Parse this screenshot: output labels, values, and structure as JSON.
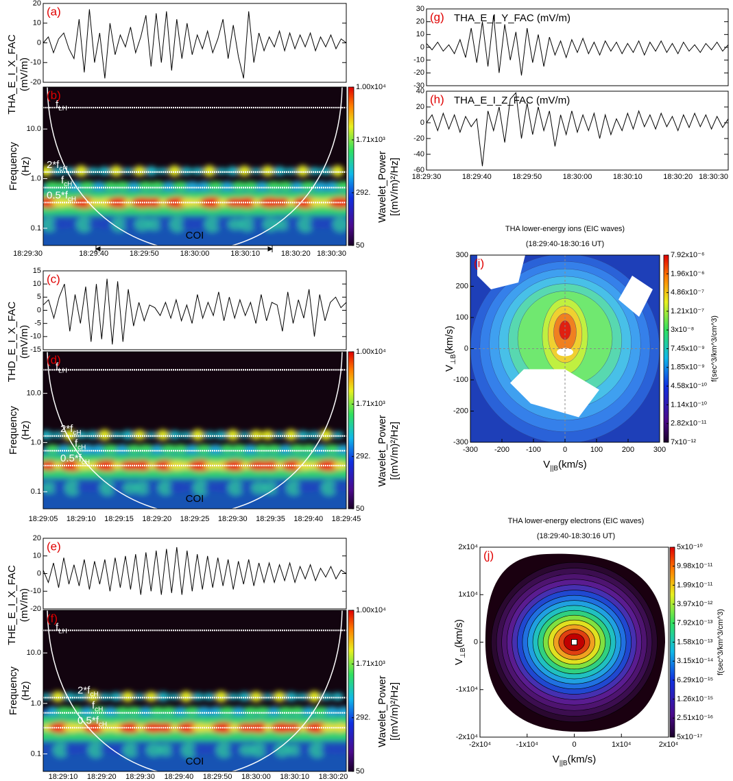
{
  "chart_data": [
    {
      "type": "line",
      "label": "(a)",
      "ylabel": [
        "THA_E_I_X_FAC",
        "(mV/m)"
      ],
      "ylim": [
        -20,
        20
      ],
      "yticks": [
        -20,
        -10,
        0,
        10,
        20
      ],
      "color": "#000000",
      "values": [
        0,
        3,
        -5,
        2,
        5,
        -3,
        -8,
        12,
        -15,
        17,
        -10,
        5,
        -18,
        10,
        -6,
        4,
        -2,
        8,
        -5,
        3,
        14,
        -12,
        15,
        -10,
        16,
        -14,
        12,
        -8,
        10,
        -6,
        4,
        -3,
        6,
        -5,
        2,
        12,
        -8,
        9,
        -7,
        -18,
        16,
        -10,
        5,
        -4,
        3,
        -2,
        6,
        -4,
        5,
        -3,
        4,
        -2,
        5,
        -4,
        3,
        -2,
        4,
        -3,
        2,
        0
      ]
    },
    {
      "type": "spectrogram",
      "label": "(b)",
      "ylabel": [
        "Frequency",
        "(Hz)"
      ],
      "log_y": true,
      "ylim": [
        0.045,
        70
      ],
      "yticks": [
        0.1,
        {
          "value": 1,
          "label": "1.0"
        },
        {
          "value": 10,
          "label": "10.0"
        }
      ],
      "xticks": [
        "18:29:30",
        "18:29:40",
        "18:29:50",
        "18:30:00",
        "18:30:10",
        "18:30:20",
        "18:30:30"
      ],
      "lines": [
        {
          "name": "f",
          "sub": "LH",
          "value": 27
        },
        {
          "name": "2*f",
          "sub": "cH",
          "value": 1.36
        },
        {
          "name": "f",
          "sub": "cH",
          "value": 0.66
        },
        {
          "name": "0.5*f",
          "sub": "cH",
          "value": 0.33
        }
      ],
      "coi_label": "COI",
      "colorbar": {
        "label": [
          "Wavelet_Power",
          "[(mV/m)²/Hz]"
        ],
        "log": true,
        "lim": [
          50,
          10000
        ],
        "ticks": [
          {
            "value": 10000,
            "label": "1.00x10⁴"
          },
          {
            "value": 1710,
            "label": "1.71x10³"
          },
          {
            "value": 292,
            "label": "292."
          },
          50.0
        ]
      }
    },
    {
      "type": "line",
      "label": "(c)",
      "ylabel": [
        "THD_E_I_X_FAC",
        "(mV/m)"
      ],
      "ylim": [
        -15,
        15
      ],
      "yticks": [
        -15,
        -10,
        -5,
        0,
        5,
        10,
        15
      ],
      "color": "#000000",
      "values": [
        2,
        4,
        -3,
        5,
        10,
        -8,
        6,
        -5,
        9,
        -12,
        10,
        -11,
        12,
        -13,
        11,
        -12,
        8,
        -6,
        3,
        -4,
        2,
        1,
        -2,
        3,
        -3,
        4,
        -4,
        2,
        -5,
        6,
        -3,
        3,
        -2,
        7,
        -4,
        5,
        -3,
        4,
        -2,
        3,
        -5,
        6,
        -4,
        3,
        2,
        -8,
        7,
        -5,
        4,
        -3,
        8,
        -10,
        6,
        -4,
        3,
        5,
        1,
        3
      ]
    },
    {
      "type": "spectrogram",
      "label": "(d)",
      "ylabel": [
        "Frequency",
        "(Hz)"
      ],
      "log_y": true,
      "ylim": [
        0.045,
        70
      ],
      "yticks": [
        0.1,
        {
          "value": 1,
          "label": "1.0"
        },
        {
          "value": 10,
          "label": "10.0"
        }
      ],
      "xticks": [
        "18:29:05",
        "18:29:10",
        "18:29:15",
        "18:29:20",
        "18:29:25",
        "18:29:30",
        "18:29:35",
        "18:29:40",
        "18:29:45"
      ],
      "lines": [
        {
          "name": "f",
          "sub": "LH",
          "value": 30
        },
        {
          "name": "2*f",
          "sub": "cH",
          "value": 1.36
        },
        {
          "name": "f",
          "sub": "cH",
          "value": 0.68
        },
        {
          "name": "0.5*f",
          "sub": "cH",
          "value": 0.34
        }
      ],
      "coi_label": "COI",
      "colorbar": {
        "label": [
          "Wavelet_Power",
          "[(mV/m)²/Hz]"
        ],
        "log": true,
        "lim": [
          50,
          10000
        ],
        "ticks": [
          {
            "value": 10000,
            "label": "1.00x10⁴"
          },
          {
            "value": 1710,
            "label": "1.71x10³"
          },
          {
            "value": 292,
            "label": "292."
          },
          50.0
        ]
      }
    },
    {
      "type": "line",
      "label": "(e)",
      "ylabel": [
        "THE_E_I_X_FAC",
        "(mV/m)"
      ],
      "ylim": [
        -20,
        20
      ],
      "yticks": [
        -20,
        -10,
        0,
        10,
        20
      ],
      "color": "#000000",
      "values": [
        2,
        -5,
        6,
        -8,
        9,
        -6,
        5,
        -7,
        8,
        -9,
        7,
        -6,
        8,
        -10,
        9,
        -8,
        10,
        -9,
        11,
        -12,
        12,
        -10,
        13,
        -12,
        14,
        -11,
        15,
        -12,
        13,
        -10,
        11,
        -9,
        10,
        -8,
        9,
        -7,
        8,
        -9,
        7,
        -6,
        8,
        -7,
        6,
        -5,
        6,
        -5,
        5,
        -4,
        6,
        -5,
        4,
        -3,
        5,
        -4,
        3,
        -2,
        4,
        -3,
        2,
        0
      ]
    },
    {
      "type": "spectrogram",
      "label": "(f)",
      "ylabel": [
        "Frequency",
        "(Hz)"
      ],
      "log_y": true,
      "ylim": [
        0.045,
        70
      ],
      "yticks": [
        0.1,
        {
          "value": 1,
          "label": "1.0"
        },
        {
          "value": 10,
          "label": "10.0"
        }
      ],
      "xticks": [
        "18:29:10",
        "18:29:20",
        "18:29:30",
        "18:29:40",
        "18:29:50",
        "18:30:00",
        "18:30:10",
        "18:30:20"
      ],
      "lines": [
        {
          "name": "f",
          "sub": "LH",
          "value": 28
        },
        {
          "name": "2*f",
          "sub": "cH",
          "value": 1.3
        },
        {
          "name": "f",
          "sub": "cH",
          "value": 0.65
        },
        {
          "name": "0.5*f",
          "sub": "cH",
          "value": 0.33
        }
      ],
      "coi_label": "COI",
      "colorbar": {
        "label": [
          "Wavelet_Power",
          "[(mV/m)²/Hz]"
        ],
        "log": true,
        "lim": [
          50,
          10000
        ],
        "ticks": [
          {
            "value": 10000,
            "label": "1.00x10⁴"
          },
          {
            "value": 1710,
            "label": "1.71x10³"
          },
          {
            "value": 292,
            "label": "292."
          },
          50.0
        ]
      }
    },
    {
      "type": "line",
      "label": "(g)",
      "title": "THA_E_I_Y_FAC (mV/m)",
      "ylim": [
        -30,
        30
      ],
      "yticks": [
        -30,
        -20,
        -10,
        0,
        10,
        20,
        30
      ],
      "color": "#000000",
      "values": [
        3,
        -2,
        4,
        -3,
        2,
        -5,
        6,
        -8,
        15,
        -12,
        20,
        -15,
        25,
        -20,
        18,
        -10,
        12,
        -22,
        15,
        -12,
        10,
        -15,
        8,
        -6,
        5,
        -8,
        6,
        -4,
        7,
        -5,
        4,
        -6,
        5,
        -3,
        4,
        -5,
        3,
        -4,
        5,
        -6,
        4,
        -3,
        5,
        -4,
        3,
        -5,
        4,
        -3,
        2,
        -4,
        3,
        -2,
        4,
        -3,
        2
      ]
    },
    {
      "type": "line",
      "label": "(h)",
      "title": "THA_E_I_Z_FAC (mV/m)",
      "ylim": [
        -60,
        40
      ],
      "yticks": [
        -60,
        -40,
        -20,
        0,
        20,
        40
      ],
      "color": "#000000",
      "xticks": [
        "18:29:30",
        "18:29:40",
        "18:29:50",
        "18:30:00",
        "18:30:10",
        "18:30:20",
        "18:30:30"
      ],
      "values": [
        0,
        10,
        -10,
        12,
        -8,
        10,
        -12,
        8,
        -5,
        5,
        -55,
        15,
        -10,
        20,
        -25,
        30,
        38,
        -20,
        25,
        -15,
        20,
        -10,
        15,
        -30,
        10,
        -15,
        15,
        -12,
        10,
        -10,
        12,
        -20,
        10,
        -15,
        5,
        -10,
        12,
        -8,
        15,
        -5,
        10,
        -8,
        12,
        -5,
        8,
        -10,
        10,
        -6,
        12,
        -5,
        10,
        -8,
        8,
        -6,
        5
      ]
    },
    {
      "type": "contour",
      "label": "(i)",
      "title": [
        "THA lower-energy ions (EIC waves)",
        "(18:29:40-18:30:16 UT)"
      ],
      "xlabel": {
        "name": "V",
        "sub": "||B",
        "unit": "(km/s)"
      },
      "ylabel": {
        "name": "V",
        "sub": "⊥B",
        "unit": "(km/s)"
      },
      "xlim": [
        -300,
        300
      ],
      "ylim": [
        -300,
        300
      ],
      "xticks": [
        -300,
        -200,
        -100,
        0,
        100,
        200,
        300
      ],
      "yticks": [
        -300,
        -200,
        -100,
        0,
        100,
        200,
        300
      ],
      "colorbar": {
        "label": "f(sec^3/km^3/cm^3)",
        "log": true,
        "lim": [
          7e-12,
          7.92e-06
        ],
        "ticks": [
          {
            "value": 7.92e-06,
            "label": "7.92x10⁻⁶"
          },
          {
            "value": 1.96e-06,
            "label": "1.96x10⁻⁶"
          },
          {
            "value": 4.86e-07,
            "label": "4.86x10⁻⁷"
          },
          {
            "value": 1.21e-07,
            "label": "1.21x10⁻⁷"
          },
          {
            "value": 3e-08,
            "label": "3x10⁻⁸"
          },
          {
            "value": 7.45e-09,
            "label": "7.45x10⁻⁹"
          },
          {
            "value": 1.85e-09,
            "label": "1.85x10⁻⁹"
          },
          {
            "value": 4.58e-10,
            "label": "4.58x10⁻¹⁰"
          },
          {
            "value": 1.14e-10,
            "label": "1.14x10⁻¹⁰"
          },
          {
            "value": 2.82e-11,
            "label": "2.82x10⁻¹¹"
          },
          {
            "value": 7e-12,
            "label": "7x10⁻¹²"
          }
        ]
      }
    },
    {
      "type": "contour",
      "label": "(j)",
      "title": [
        "THA lower-energy electrons (EIC waves)",
        "(18:29:40-18:30:16 UT)"
      ],
      "xlabel": {
        "name": "V",
        "sub": "||B",
        "unit": "(km/s)"
      },
      "ylabel": {
        "name": "V",
        "sub": "⊥B",
        "unit": "(km/s)"
      },
      "xlim": [
        -20000,
        20000
      ],
      "ylim": [
        -20000,
        20000
      ],
      "xticks": [
        {
          "value": -20000,
          "label": "-2x10⁴"
        },
        {
          "value": -10000,
          "label": "-1x10⁴"
        },
        0,
        {
          "value": 10000,
          "label": "1x10⁴"
        },
        {
          "value": 20000,
          "label": "2x10⁴"
        }
      ],
      "yticks": [
        {
          "value": -20000,
          "label": "-2x10⁴"
        },
        {
          "value": -10000,
          "label": "-1x10⁴"
        },
        0,
        {
          "value": 10000,
          "label": "1x10⁴"
        },
        {
          "value": 20000,
          "label": "2x10⁴"
        }
      ],
      "colorbar": {
        "label": "f(sec^3/km^3/cm^3)",
        "log": true,
        "lim": [
          5e-17,
          5e-10
        ],
        "ticks": [
          {
            "value": 5e-10,
            "label": "5x10⁻¹⁰"
          },
          {
            "value": 9.98e-11,
            "label": "9.98x10⁻¹¹"
          },
          {
            "value": 1.99e-11,
            "label": "1.99x10⁻¹¹"
          },
          {
            "value": 3.97e-12,
            "label": "3.97x10⁻¹²"
          },
          {
            "value": 7.92e-13,
            "label": "7.92x10⁻¹³"
          },
          {
            "value": 1.58e-13,
            "label": "1.58x10⁻¹³"
          },
          {
            "value": 3.15e-14,
            "label": "3.15x10⁻¹⁴"
          },
          {
            "value": 6.29e-15,
            "label": "6.29x10⁻¹⁵"
          },
          {
            "value": 1.26e-15,
            "label": "1.26x10⁻¹⁵"
          },
          {
            "value": 2.51e-16,
            "label": "2.51x10⁻¹⁶"
          },
          {
            "value": 5e-17,
            "label": "5x10⁻¹⁷"
          }
        ]
      }
    }
  ]
}
